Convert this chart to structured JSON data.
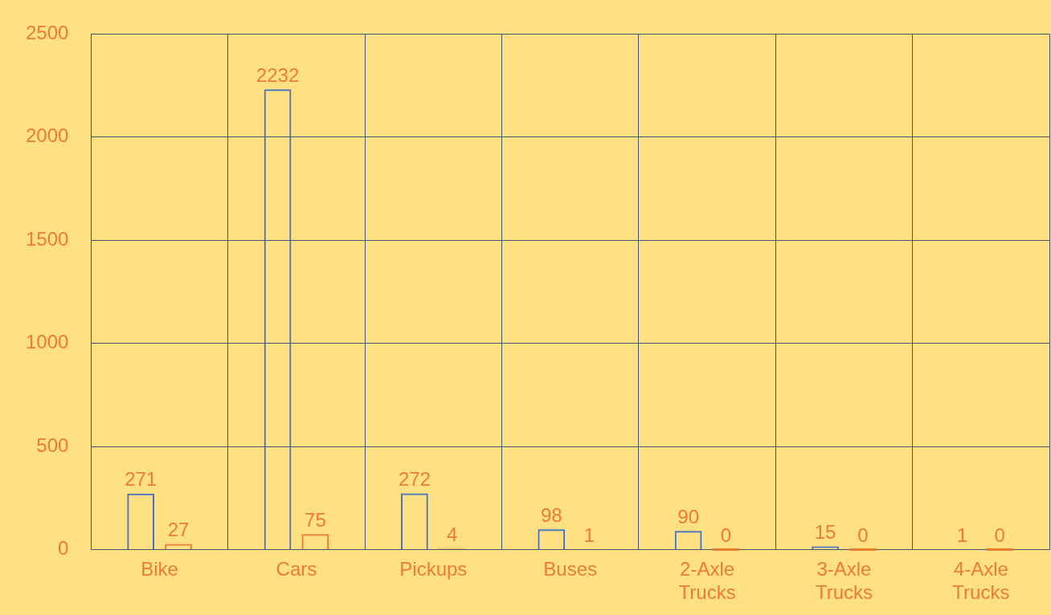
{
  "chart_data": {
    "type": "bar",
    "categories": [
      "Bike",
      "Cars",
      "Pickups",
      "Buses",
      "2-Axle Trucks",
      "3-Axle Trucks",
      "4-Axle Trucks"
    ],
    "series": [
      {
        "color": "#4472c4",
        "values": [
          271,
          2232,
          272,
          98,
          90,
          15,
          1
        ]
      },
      {
        "color": "#ed7d31",
        "values": [
          27,
          75,
          4,
          1,
          0,
          0,
          0
        ]
      }
    ],
    "ylim": [
      0,
      2500
    ],
    "yticks": [
      0,
      500,
      1000,
      1500,
      2000,
      2500
    ],
    "grid": true,
    "legend": false,
    "data_labels": true
  }
}
